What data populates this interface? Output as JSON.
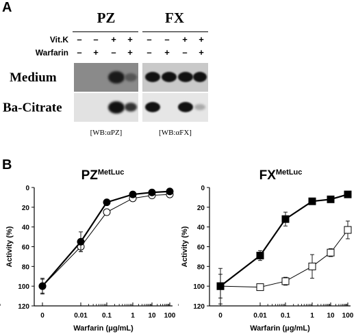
{
  "panelA": {
    "letter": "A",
    "groups": [
      {
        "name": "PZ",
        "wb": "[WB:αPZ]"
      },
      {
        "name": "FX",
        "wb": "[WB:αFX]"
      }
    ],
    "treatments": [
      {
        "label": "Vit.K",
        "signs": [
          "–",
          "–",
          "+",
          "+",
          "–",
          "–",
          "+",
          "+"
        ]
      },
      {
        "label": "Warfarin",
        "signs": [
          "–",
          "+",
          "–",
          "+",
          "–",
          "+",
          "–",
          "+"
        ]
      }
    ],
    "rows": [
      "Medium",
      "Ba-Citrate"
    ]
  },
  "panelB": {
    "letter": "B"
  },
  "chart_data": [
    {
      "type": "line",
      "title": "PZ",
      "title_superscript": "MetLuc",
      "xlabel": "Warfarin (μg/mL)",
      "ylabel": "Activity (%)",
      "x_tick_labels": [
        "0",
        "0.01",
        "0.1",
        "1",
        "10",
        "100"
      ],
      "y_ticks": [
        0,
        20,
        40,
        60,
        80,
        100,
        120
      ],
      "ylim": [
        0,
        120
      ],
      "x_scale": "log with zero category",
      "series": [
        {
          "marker": "open-circle",
          "x": [
            "0",
            "0.01",
            "0.1",
            "1",
            "10",
            "100"
          ],
          "values": [
            100,
            60,
            25,
            11,
            8,
            7
          ],
          "errors": [
            8,
            5,
            3,
            2,
            2,
            2
          ]
        },
        {
          "marker": "filled-circle",
          "x": [
            "0",
            "0.01",
            "0.1",
            "1",
            "10",
            "100"
          ],
          "values": [
            100,
            55,
            15,
            7,
            5,
            4
          ],
          "errors": [
            7,
            10,
            2,
            1,
            1,
            1
          ]
        }
      ]
    },
    {
      "type": "line",
      "title": "FX",
      "title_superscript": "MetLuc",
      "xlabel": "Warfarin (μg/mL)",
      "ylabel": "Activity (%)",
      "x_tick_labels": [
        "0",
        "0.01",
        "0.1",
        "1",
        "10",
        "100"
      ],
      "y_ticks": [
        0,
        20,
        40,
        60,
        80,
        100,
        120
      ],
      "ylim": [
        0,
        120
      ],
      "x_scale": "log with zero category",
      "series": [
        {
          "marker": "open-square",
          "x": [
            "0",
            "0.01",
            "0.1",
            "1",
            "10",
            "100"
          ],
          "values": [
            100,
            101,
            95,
            80,
            66,
            43
          ],
          "errors": [
            18,
            3,
            4,
            12,
            4,
            9
          ]
        },
        {
          "marker": "filled-square",
          "x": [
            "0",
            "0.01",
            "0.1",
            "1",
            "10",
            "100"
          ],
          "values": [
            100,
            69,
            32,
            14,
            12,
            7
          ],
          "errors": [
            12,
            5,
            7,
            2,
            2,
            1
          ]
        }
      ]
    }
  ]
}
